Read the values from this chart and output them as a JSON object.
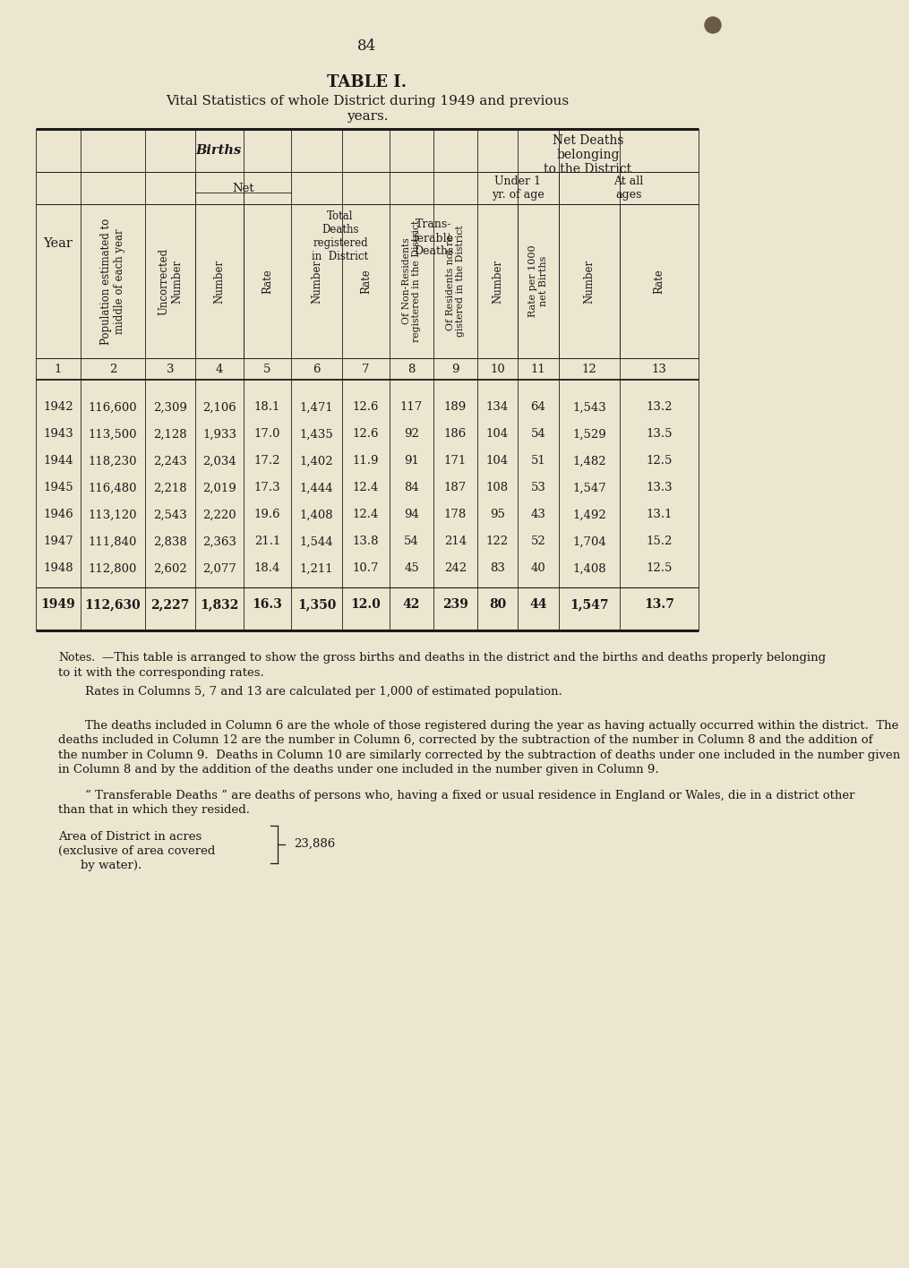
{
  "page_number": "84",
  "title_line1": "TABLE I.",
  "title_line2": "Vital Statistics of whole District during 1949 and previous",
  "title_line3": "years.",
  "bg_color": "#ece5d0",
  "text_color": "#1a1a1a",
  "col_numbers": [
    "1",
    "2",
    "3",
    "4",
    "5",
    "6",
    "7",
    "8",
    "9",
    "10",
    "11",
    "12",
    "13"
  ],
  "rows": [
    {
      "year": "1942",
      "c2": "116,600",
      "c3": "2,309",
      "c4": "2,106",
      "c5": "18.1",
      "c6": "1,471",
      "c7": "12.6",
      "c8": "117",
      "c9": "189",
      "c10": "134",
      "c11": "64",
      "c12": "1,543",
      "c13": "13.2"
    },
    {
      "year": "1943",
      "c2": "113,500",
      "c3": "2,128",
      "c4": "1,933",
      "c5": "17.0",
      "c6": "1,435",
      "c7": "12.6",
      "c8": "92",
      "c9": "186",
      "c10": "104",
      "c11": "54",
      "c12": "1,529",
      "c13": "13.5"
    },
    {
      "year": "1944",
      "c2": "118,230",
      "c3": "2,243",
      "c4": "2,034",
      "c5": "17.2",
      "c6": "1,402",
      "c7": "11.9",
      "c8": "91",
      "c9": "171",
      "c10": "104",
      "c11": "51",
      "c12": "1,482",
      "c13": "12.5"
    },
    {
      "year": "1945",
      "c2": "116,480",
      "c3": "2,218",
      "c4": "2,019",
      "c5": "17.3",
      "c6": "1,444",
      "c7": "12.4",
      "c8": "84",
      "c9": "187",
      "c10": "108",
      "c11": "53",
      "c12": "1,547",
      "c13": "13.3"
    },
    {
      "year": "1946",
      "c2": "113,120",
      "c3": "2,543",
      "c4": "2,220",
      "c5": "19.6",
      "c6": "1,408",
      "c7": "12.4",
      "c8": "94",
      "c9": "178",
      "c10": "95",
      "c11": "43",
      "c12": "1,492",
      "c13": "13.1"
    },
    {
      "year": "1947",
      "c2": "111,840",
      "c3": "2,838",
      "c4": "2,363",
      "c5": "21.1",
      "c6": "1,544",
      "c7": "13.8",
      "c8": "54",
      "c9": "214",
      "c10": "122",
      "c11": "52",
      "c12": "1,704",
      "c13": "15.2"
    },
    {
      "year": "1948",
      "c2": "112,800",
      "c3": "2,602",
      "c4": "2,077",
      "c5": "18.4",
      "c6": "1,211",
      "c7": "10.7",
      "c8": "45",
      "c9": "242",
      "c10": "83",
      "c11": "40",
      "c12": "1,408",
      "c13": "12.5"
    }
  ],
  "row_1949": {
    "year": "1949",
    "c2": "112,630",
    "c3": "2,227",
    "c4": "1,832",
    "c5": "16.3",
    "c6": "1,350",
    "c7": "12.0",
    "c8": "42",
    "c9": "239",
    "c10": "80",
    "c11": "44",
    "c12": "1,547",
    "c13": "13.7"
  },
  "note_para1_line1": "Notes.",
  "note_para1_rest": "—This table is arranged to show the gross births and deaths in the district and the births and deaths properly belonging",
  "note_para1_line2": "to it with the corresponding rates.",
  "note_para2": "Rates in Columns 5, 7 and 13 are calculated per 1,000 of estimated population.",
  "note_para3_lines": [
    "The deaths included in Column 6 are the whole of those registered during the year as having actually occurred within the district.  The",
    "deaths included in Column 12 are the number in Column 6, corrected by the subtraction of the number in Column 8 and the addition of",
    "the number in Column 9.  Deaths in Column 10 are similarly corrected by the subtraction of deaths under one included in the number given",
    "in Column 8 and by the addition of the deaths under one included in the number given in Column 9."
  ],
  "note_para4_lines": [
    "“ Transferable Deaths ” are deaths of persons who, having a fixed or usual residence in England or Wales, die in a district other",
    "than that in which they resided."
  ],
  "area_line1": "Area of District in acres",
  "area_line2": "(exclusive of area covered",
  "area_line3": "by water).",
  "area_value": "23,886",
  "dot_color": "#6b5a45"
}
